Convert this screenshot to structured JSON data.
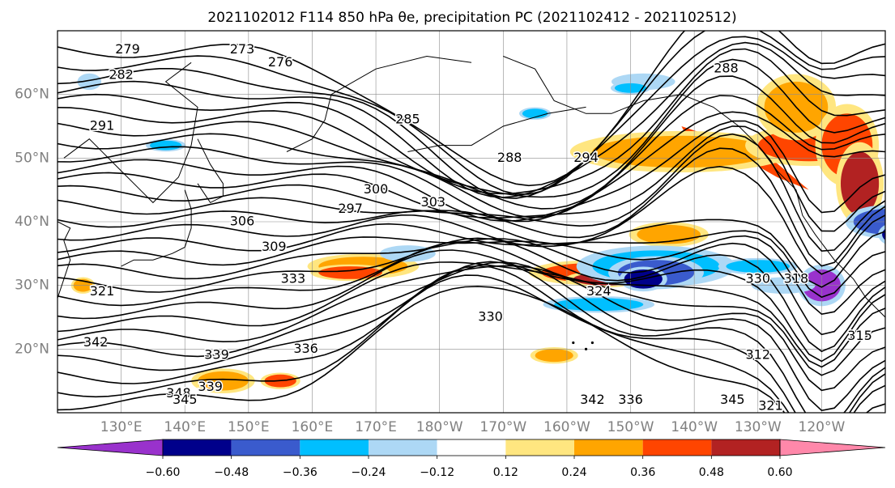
{
  "chart_data": {
    "type": "contour-map",
    "title": "2021102012 F114 850 hPa θe, precipitation PC (2021102412 - 2021102512)",
    "lat_ticks": [
      "20°N",
      "30°N",
      "40°N",
      "50°N",
      "60°N"
    ],
    "lon_ticks": [
      "130°E",
      "140°E",
      "150°E",
      "160°E",
      "170°E",
      "180°W",
      "170°W",
      "160°W",
      "150°W",
      "140°W",
      "130°W",
      "120°W"
    ],
    "extent": {
      "lon": [
        120,
        250
      ],
      "lat": [
        10,
        70
      ]
    },
    "grid": true,
    "colorbar": {
      "orientation": "horizontal",
      "extend": "both",
      "tick_labels": [
        "−0.60",
        "−0.48",
        "−0.36",
        "−0.24",
        "−0.12",
        "0.12",
        "0.24",
        "0.36",
        "0.48",
        "0.60"
      ],
      "levels": [
        -0.6,
        -0.48,
        -0.36,
        -0.24,
        -0.12,
        0.12,
        0.24,
        0.36,
        0.48,
        0.6
      ],
      "colors": [
        "#9932cc",
        "#00008b",
        "#3a5bcd",
        "#00bfff",
        "#add8f5",
        "#ffffff",
        "#ffe680",
        "#ffa500",
        "#ff4500",
        "#b22222",
        "#ff88aa"
      ]
    },
    "contour_labels": [
      "279",
      "273",
      "276",
      "282",
      "285",
      "291",
      "288",
      "294",
      "300",
      "303",
      "297",
      "306",
      "309",
      "333",
      "321",
      "318",
      "330",
      "324",
      "330",
      "342",
      "336",
      "339",
      "348",
      "345",
      "339",
      "342",
      "336",
      "345",
      "321",
      "312",
      "315",
      "288"
    ],
    "colors": {
      "contour": "#000000",
      "land_outline": "#000000",
      "gridline": "#8c8c8c"
    }
  }
}
